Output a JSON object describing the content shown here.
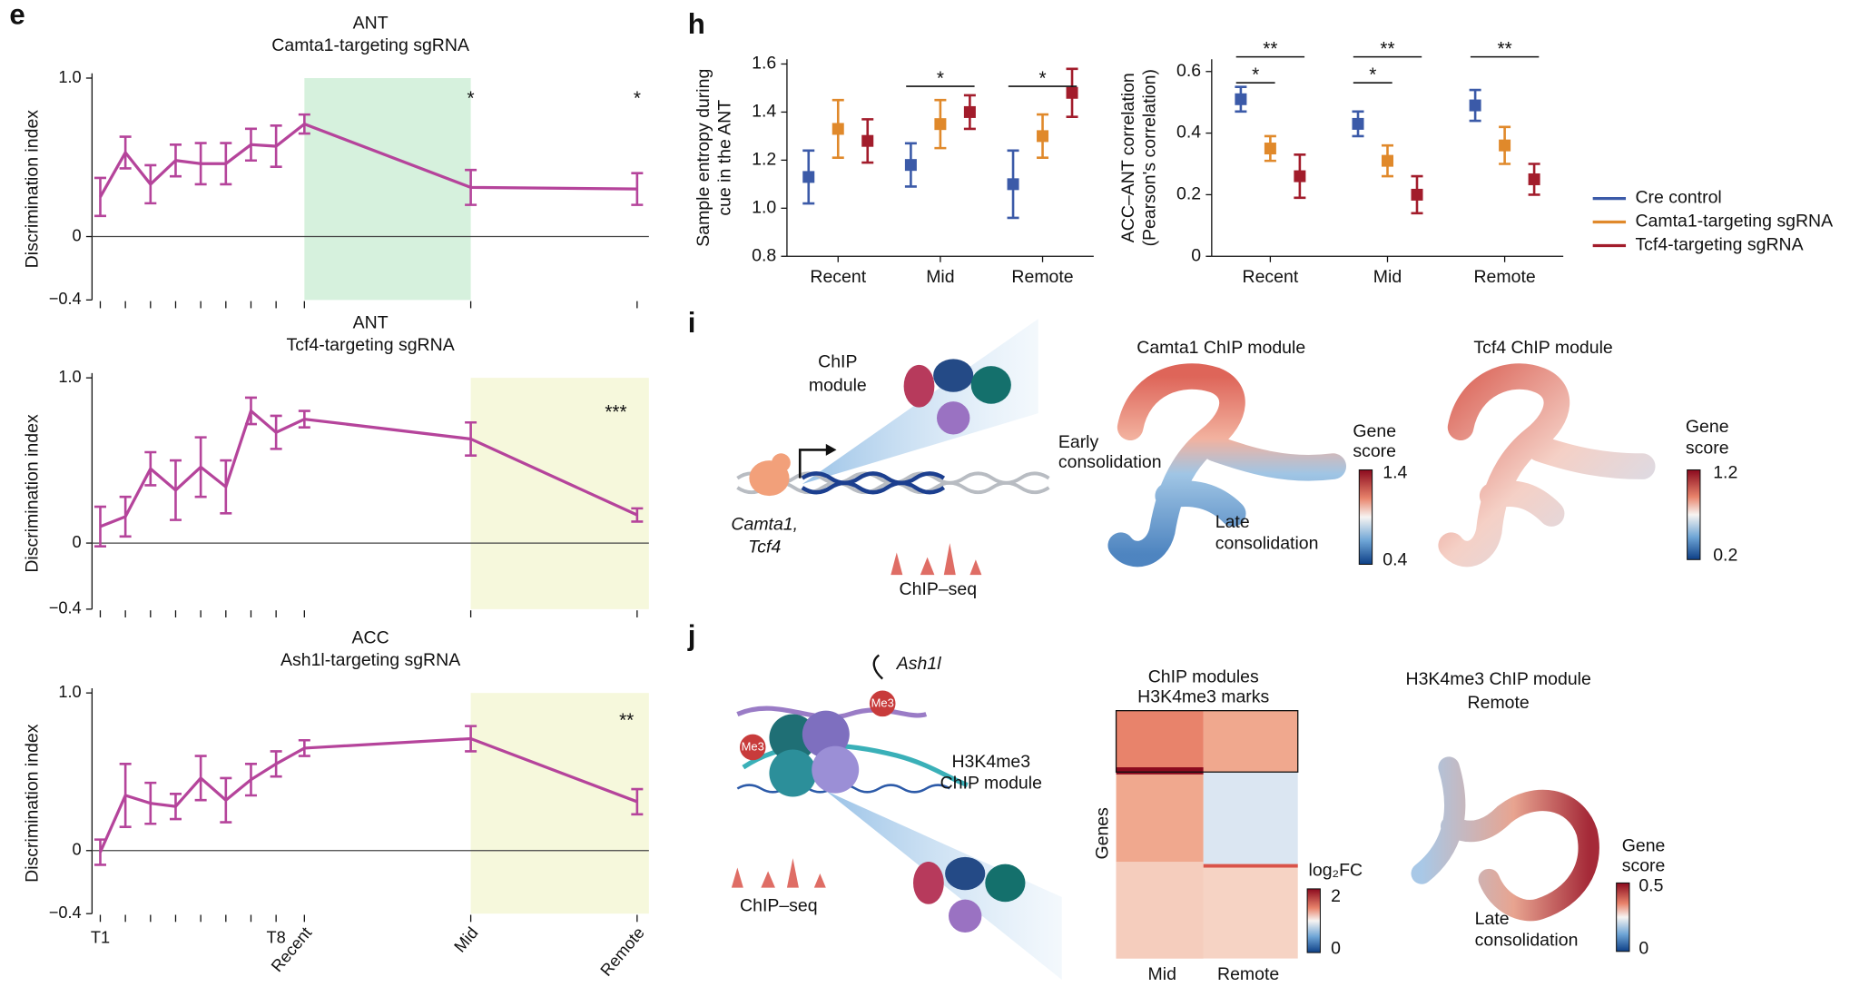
{
  "panel_labels": [
    "e",
    "h",
    "i",
    "j"
  ],
  "chart_data": [
    {
      "type": "line",
      "title": "ANT",
      "subtitle": "Camta1-targeting sgRNA",
      "y_label": "Discrimination index",
      "values": [
        0.25,
        0.53,
        0.33,
        0.48,
        0.46,
        0.46,
        0.58,
        0.57,
        0.71,
        0.31,
        0.3
      ],
      "errors": [
        0.12,
        0.1,
        0.12,
        0.1,
        0.13,
        0.13,
        0.1,
        0.13,
        0.06,
        0.11,
        0.1
      ],
      "significance": [
        null,
        null,
        null,
        null,
        null,
        null,
        null,
        null,
        null,
        "*",
        "*"
      ],
      "color": "#b5449b",
      "ylim": [
        -0.4,
        1.0
      ],
      "yticks": [
        {
          "value": -0.4,
          "label": "−0.4"
        },
        0,
        {
          "value": 1.0,
          "label": "1.0"
        }
      ],
      "shade": {
        "from": "Recent",
        "to": "Mid",
        "color": "#d6f1dd"
      }
    },
    {
      "type": "line",
      "title": "ANT",
      "subtitle": "Tcf4-targeting sgRNA",
      "y_label": "Discrimination index",
      "values": [
        0.1,
        0.16,
        0.45,
        0.32,
        0.46,
        0.34,
        0.8,
        0.67,
        0.75,
        0.63,
        0.17
      ],
      "errors": [
        0.12,
        0.12,
        0.1,
        0.18,
        0.18,
        0.16,
        0.08,
        0.1,
        0.05,
        0.1,
        0.04
      ],
      "significance": [
        null,
        null,
        null,
        null,
        null,
        null,
        null,
        null,
        null,
        null,
        "***"
      ],
      "color": "#b5449b",
      "ylim": [
        -0.4,
        1.0
      ],
      "yticks": [
        {
          "value": -0.4,
          "label": "−0.4"
        },
        0,
        {
          "value": 1.0,
          "label": "1.0"
        }
      ],
      "shade": {
        "from": "Mid",
        "color": "#f6f8dc"
      }
    },
    {
      "type": "line",
      "title": "ACC",
      "subtitle": "Ash1l-targeting sgRNA",
      "y_label": "Discrimination index",
      "categories": [
        "T1",
        null,
        null,
        null,
        null,
        null,
        null,
        "T8",
        "Recent",
        "Mid",
        "Remote"
      ],
      "values": [
        -0.01,
        0.35,
        0.3,
        0.28,
        0.46,
        0.32,
        0.45,
        0.55,
        0.65,
        0.71,
        0.31
      ],
      "errors": [
        0.08,
        0.2,
        0.13,
        0.08,
        0.14,
        0.14,
        0.1,
        0.08,
        0.05,
        0.08,
        0.08
      ],
      "significance": [
        null,
        null,
        null,
        null,
        null,
        null,
        null,
        null,
        null,
        null,
        "**"
      ],
      "color": "#b5449b",
      "ylim": [
        -0.4,
        1.0
      ],
      "yticks": [
        {
          "value": -0.4,
          "label": "−0.4"
        },
        0,
        {
          "value": 1.0,
          "label": "1.0"
        }
      ],
      "shade": {
        "from": "Mid",
        "color": "#f6f8dc"
      }
    },
    {
      "type": "errorbar",
      "y_label": [
        "Sample entropy during",
        "cue in the ANT"
      ],
      "categories": [
        "Recent",
        "Mid",
        "Remote"
      ],
      "series": [
        {
          "name": "Cre control",
          "color": "#3b5aa8",
          "values": [
            1.13,
            1.18,
            1.1
          ],
          "errors": [
            0.11,
            0.09,
            0.14
          ]
        },
        {
          "name": "Camta1-targeting sgRNA",
          "color": "#e0892b",
          "values": [
            1.33,
            1.35,
            1.3
          ],
          "errors": [
            0.12,
            0.1,
            0.09
          ]
        },
        {
          "name": "Tcf4-targeting sgRNA",
          "color": "#a21c2b",
          "values": [
            1.28,
            1.4,
            1.48
          ],
          "errors": [
            0.09,
            0.07,
            0.1
          ]
        }
      ],
      "ylim": [
        0.8,
        1.62
      ],
      "yticks": [
        {
          "value": 0.8,
          "label": "0.8"
        },
        {
          "value": 1.0,
          "label": "1.0"
        },
        {
          "value": 1.2,
          "label": "1.2"
        },
        {
          "value": 1.4,
          "label": "1.4"
        },
        {
          "value": 1.6,
          "label": "1.6"
        }
      ],
      "significance": [
        {
          "category": "Mid",
          "from": "Cre control",
          "to": "Tcf4-targeting sgRNA",
          "text": "*"
        },
        {
          "category": "Remote",
          "from": "Cre control",
          "to": "Tcf4-targeting sgRNA",
          "text": "*"
        }
      ]
    },
    {
      "type": "errorbar",
      "y_label": [
        "ACC–ANT correlation",
        "(Pearson's correlation)"
      ],
      "categories": [
        "Recent",
        "Mid",
        "Remote"
      ],
      "series": [
        {
          "name": "Cre control",
          "color": "#3b5aa8",
          "values": [
            0.51,
            0.43,
            0.49
          ],
          "errors": [
            0.04,
            0.04,
            0.05
          ]
        },
        {
          "name": "Camta1-targeting sgRNA",
          "color": "#e0892b",
          "values": [
            0.35,
            0.31,
            0.36
          ],
          "errors": [
            0.04,
            0.05,
            0.06
          ]
        },
        {
          "name": "Tcf4-targeting sgRNA",
          "color": "#a21c2b",
          "values": [
            0.26,
            0.2,
            0.25
          ],
          "errors": [
            0.07,
            0.06,
            0.05
          ]
        }
      ],
      "ylim": [
        0,
        0.64
      ],
      "yticks": [
        0,
        0.2,
        0.4,
        0.6
      ],
      "legend": "right",
      "significance": [
        {
          "category": "Recent",
          "from": "Cre control",
          "to": "Tcf4-targeting sgRNA",
          "text": "**"
        },
        {
          "category": "Recent",
          "from": "Cre control",
          "to": "Camta1-targeting sgRNA",
          "text": "*"
        },
        {
          "category": "Mid",
          "from": "Cre control",
          "to": "Tcf4-targeting sgRNA",
          "text": "**"
        },
        {
          "category": "Mid",
          "from": "Cre control",
          "to": "Camta1-targeting sgRNA",
          "text": "*"
        },
        {
          "category": "Remote",
          "from": "Cre control",
          "to": "Tcf4-targeting sgRNA",
          "text": "**"
        }
      ]
    }
  ],
  "panels": {
    "i": {
      "chip_module": [
        "ChIP",
        "module"
      ],
      "factors": [
        "Camta1,",
        "Tcf4"
      ],
      "chip_seq": "ChIP–seq",
      "umap1": {
        "title": "Camta1 ChIP module",
        "early": [
          "Early",
          "consolidation"
        ],
        "late": [
          "Late",
          "consolidation"
        ],
        "colorbar_title": [
          "Gene",
          "score"
        ],
        "colorbar_max": "1.4",
        "colorbar_min": "0.4"
      },
      "umap2": {
        "title": "Tcf4 ChIP module",
        "colorbar_title": [
          "Gene",
          "score"
        ],
        "colorbar_max": "1.2",
        "colorbar_min": "0.2"
      }
    },
    "j": {
      "enzyme": "Ash1l",
      "mark": [
        "Me3",
        "Me3"
      ],
      "chip_module": [
        "H3K4me3",
        "ChIP module"
      ],
      "chip_seq": "ChIP–seq",
      "heatmap": {
        "title": [
          "ChIP modules",
          "H3K4me3 marks"
        ],
        "y_label": "Genes",
        "columns": [
          "Mid",
          "Remote"
        ],
        "colorbar_title": "log₂FC",
        "colorbar_max": "2",
        "colorbar_min": "0"
      },
      "umap": {
        "title": [
          "H3K4me3 ChIP module",
          "Remote"
        ],
        "late": [
          "Late",
          "consolidation"
        ],
        "colorbar_title": [
          "Gene",
          "score"
        ],
        "colorbar_max": "0.5",
        "colorbar_min": "0"
      }
    }
  }
}
